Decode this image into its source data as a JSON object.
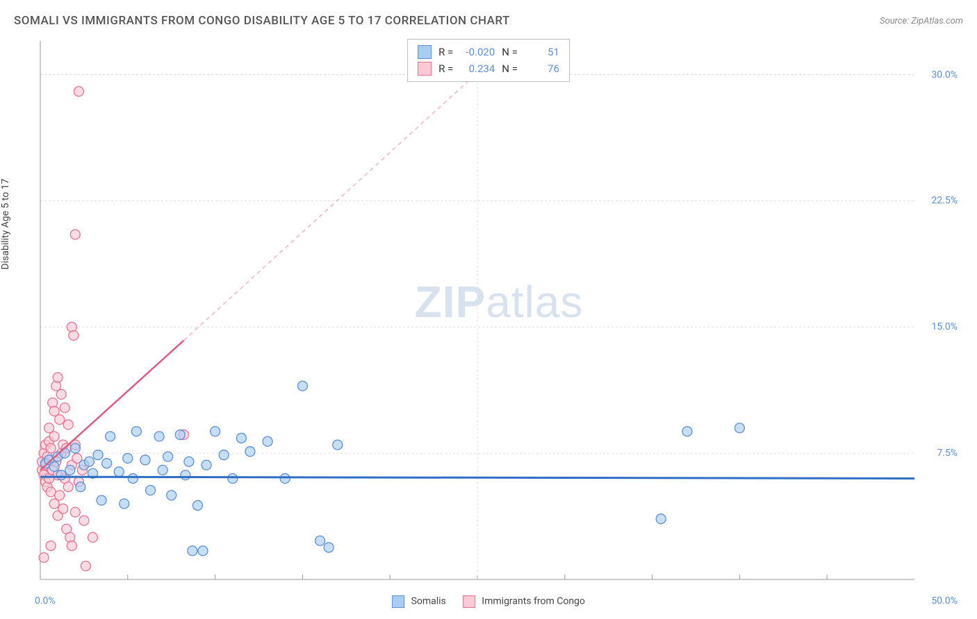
{
  "header": {
    "title": "SOMALI VS IMMIGRANTS FROM CONGO DISABILITY AGE 5 TO 17 CORRELATION CHART",
    "source": "Source: ZipAtlas.com"
  },
  "axes": {
    "ylabel": "Disability Age 5 to 17",
    "xlim": [
      0,
      50
    ],
    "ylim": [
      0,
      32
    ],
    "yticks": [
      7.5,
      15.0,
      22.5,
      30.0
    ],
    "ytick_labels": [
      "7.5%",
      "15.0%",
      "22.5%",
      "30.0%"
    ],
    "xtick_min_label": "0.0%",
    "xtick_max_label": "50.0%",
    "xticks_minor": [
      5,
      10,
      15,
      20,
      25,
      30,
      35,
      40,
      45
    ],
    "grid_color": "#dcdcdc",
    "axis_color": "#999999",
    "ytick_color": "#5b8fd8"
  },
  "watermark": {
    "part1": "ZIP",
    "part2": "atlas"
  },
  "series": {
    "blue": {
      "name": "Somalis",
      "fill": "#a9cdf2",
      "stroke": "#5b8fd8",
      "marker_r": 7,
      "opacity": 0.65,
      "stats": {
        "R": "-0.020",
        "N": "51"
      },
      "trend": {
        "x1": 0,
        "y1": 6.1,
        "x2": 50,
        "y2": 6.0,
        "color": "#2f6ec4",
        "width": 3
      },
      "points": [
        [
          0.3,
          6.9
        ],
        [
          0.5,
          7.1
        ],
        [
          0.8,
          6.7
        ],
        [
          1.0,
          7.3
        ],
        [
          1.2,
          6.2
        ],
        [
          1.4,
          7.5
        ],
        [
          1.7,
          6.5
        ],
        [
          2.0,
          7.8
        ],
        [
          2.3,
          5.5
        ],
        [
          2.5,
          6.8
        ],
        [
          2.8,
          7.0
        ],
        [
          3.0,
          6.3
        ],
        [
          3.3,
          7.4
        ],
        [
          3.5,
          4.7
        ],
        [
          3.8,
          6.9
        ],
        [
          4.0,
          8.5
        ],
        [
          4.5,
          6.4
        ],
        [
          4.8,
          4.5
        ],
        [
          5.0,
          7.2
        ],
        [
          5.3,
          6.0
        ],
        [
          5.5,
          8.8
        ],
        [
          6.0,
          7.1
        ],
        [
          6.3,
          5.3
        ],
        [
          6.8,
          8.5
        ],
        [
          7.0,
          6.5
        ],
        [
          7.3,
          7.3
        ],
        [
          7.5,
          5.0
        ],
        [
          8.0,
          8.6
        ],
        [
          8.3,
          6.2
        ],
        [
          8.5,
          7.0
        ],
        [
          9.0,
          4.4
        ],
        [
          9.5,
          6.8
        ],
        [
          10.0,
          8.8
        ],
        [
          10.5,
          7.4
        ],
        [
          11.0,
          6.0
        ],
        [
          11.5,
          8.4
        ],
        [
          12.0,
          7.6
        ],
        [
          13.0,
          8.2
        ],
        [
          14.0,
          6.0
        ],
        [
          15.0,
          11.5
        ],
        [
          16.0,
          2.3
        ],
        [
          17.0,
          8.0
        ],
        [
          8.7,
          1.7
        ],
        [
          9.3,
          1.7
        ],
        [
          16.5,
          1.9
        ],
        [
          35.5,
          3.6
        ],
        [
          37.0,
          8.8
        ],
        [
          40.0,
          9.0
        ]
      ]
    },
    "pink": {
      "name": "Immigrants from Congo",
      "fill": "#fbcad6",
      "stroke": "#e9718f",
      "marker_r": 7,
      "opacity": 0.65,
      "stats": {
        "R": "0.234",
        "N": "76"
      },
      "trend": {
        "x1": 0,
        "y1": 6.5,
        "x2": 8.2,
        "y2": 14.2,
        "color": "#e45a7e",
        "width": 2.5
      },
      "trend_ext": {
        "x1": 8.2,
        "y1": 14.2,
        "x2": 27,
        "y2": 32,
        "color": "#f2b3c3",
        "dash": "6,5",
        "width": 1.5
      },
      "points": [
        [
          0.1,
          6.5
        ],
        [
          0.1,
          7.0
        ],
        [
          0.2,
          6.2
        ],
        [
          0.2,
          7.5
        ],
        [
          0.3,
          5.8
        ],
        [
          0.3,
          8.0
        ],
        [
          0.3,
          6.8
        ],
        [
          0.4,
          7.3
        ],
        [
          0.4,
          5.5
        ],
        [
          0.5,
          8.2
        ],
        [
          0.5,
          6.0
        ],
        [
          0.5,
          9.0
        ],
        [
          0.6,
          7.8
        ],
        [
          0.6,
          5.2
        ],
        [
          0.7,
          10.5
        ],
        [
          0.7,
          6.5
        ],
        [
          0.8,
          8.5
        ],
        [
          0.8,
          10.0
        ],
        [
          0.8,
          4.5
        ],
        [
          0.9,
          11.5
        ],
        [
          0.9,
          7.0
        ],
        [
          1.0,
          12.0
        ],
        [
          1.0,
          6.2
        ],
        [
          1.0,
          3.8
        ],
        [
          1.1,
          9.5
        ],
        [
          1.1,
          5.0
        ],
        [
          1.2,
          11.0
        ],
        [
          1.2,
          7.5
        ],
        [
          1.3,
          8.0
        ],
        [
          1.3,
          4.2
        ],
        [
          1.4,
          10.2
        ],
        [
          1.4,
          6.0
        ],
        [
          1.5,
          3.0
        ],
        [
          1.5,
          7.8
        ],
        [
          1.6,
          5.5
        ],
        [
          1.6,
          9.2
        ],
        [
          1.7,
          2.5
        ],
        [
          1.8,
          15.0
        ],
        [
          1.8,
          6.8
        ],
        [
          1.9,
          14.5
        ],
        [
          2.0,
          8.0
        ],
        [
          2.0,
          4.0
        ],
        [
          2.1,
          7.2
        ],
        [
          2.2,
          5.8
        ],
        [
          2.4,
          6.5
        ],
        [
          2.5,
          3.5
        ],
        [
          2.6,
          0.8
        ],
        [
          2.0,
          20.5
        ],
        [
          2.2,
          29.0
        ],
        [
          3.0,
          2.5
        ],
        [
          0.2,
          1.3
        ],
        [
          0.6,
          2.0
        ],
        [
          1.8,
          2.0
        ],
        [
          8.2,
          8.6
        ]
      ]
    }
  },
  "legend_bottom": {
    "items": [
      {
        "name": "Somalis",
        "fill": "#a9cdf2",
        "stroke": "#5b8fd8"
      },
      {
        "name": "Immigrants from Congo",
        "fill": "#fbcad6",
        "stroke": "#e9718f"
      }
    ]
  },
  "stats_box": {
    "r_label": "R  =",
    "n_label": "N  ="
  }
}
